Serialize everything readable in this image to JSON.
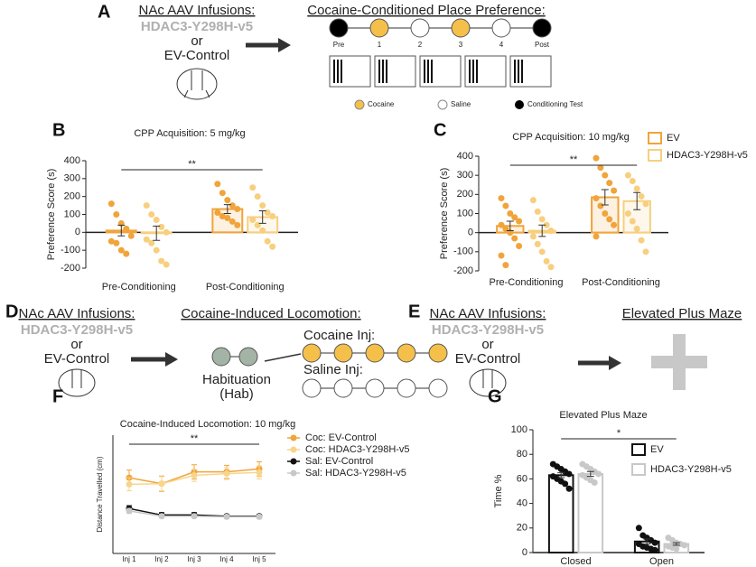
{
  "chart_data": [
    {
      "type": "bar",
      "title": "CPP Acquisition: 5 mg/kg",
      "ylabel": "Preference Score (s)",
      "categories": [
        "Pre-Conditioning",
        "Post-Conditioning"
      ],
      "ylim": [
        -200,
        400
      ],
      "yticks": [
        -200,
        -100,
        0,
        100,
        200,
        300,
        400
      ],
      "annotation": "**",
      "series": [
        {
          "color": "#f0a43a",
          "values": [
            10,
            130
          ],
          "errors": [
            30,
            25
          ],
          "points": [
            [
              160,
              100,
              50,
              20,
              -20,
              -50,
              -60,
              -100,
              -120
            ],
            [
              270,
              220,
              180,
              150,
              130,
              110,
              90,
              80,
              60,
              40
            ]
          ]
        },
        {
          "color": "#f7cf7e",
          "values": [
            -5,
            85
          ],
          "errors": [
            40,
            35
          ],
          "points": [
            [
              150,
              100,
              70,
              30,
              0,
              -40,
              -60,
              -100,
              -160,
              -180
            ],
            [
              250,
              200,
              150,
              110,
              90,
              70,
              40,
              10,
              -50,
              -80
            ]
          ]
        }
      ]
    },
    {
      "type": "bar",
      "title": "CPP Acquisition: 10 mg/kg",
      "ylabel": "Preference Score (s)",
      "categories": [
        "Pre-Conditioning",
        "Post-Conditioning"
      ],
      "ylim": [
        -200,
        400
      ],
      "yticks": [
        -200,
        -100,
        0,
        100,
        200,
        300,
        400
      ],
      "annotation": "**",
      "series": [
        {
          "name": "EV",
          "color": "#f0a43a",
          "values": [
            35,
            185
          ],
          "errors": [
            25,
            40
          ],
          "points": [
            [
              180,
              140,
              100,
              80,
              60,
              40,
              20,
              0,
              -30,
              -70,
              -120,
              -170
            ],
            [
              390,
              340,
              300,
              260,
              220,
              180,
              140,
              100,
              70,
              40,
              -20
            ]
          ]
        },
        {
          "name": "HDAC3-Y298H-v5",
          "color": "#f7cf7e",
          "values": [
            10,
            165
          ],
          "errors": [
            30,
            45
          ],
          "points": [
            [
              170,
              110,
              70,
              40,
              10,
              -20,
              -60,
              -100,
              -150,
              -180
            ],
            [
              300,
              270,
              230,
              190,
              150,
              100,
              60,
              20,
              -40,
              -100
            ]
          ]
        }
      ]
    },
    {
      "type": "line",
      "title": "Cocaine-Induced Locomotion: 10 mg/kg",
      "ylabel": "Distance Travelled (cm)",
      "categories": [
        "Inj 1",
        "Inj 2",
        "Inj 3",
        "Inj 4",
        "Inj 5"
      ],
      "ylim": [
        0,
        20000
      ],
      "annotation": "**",
      "series": [
        {
          "name": "Coc: EV-Control",
          "color": "#f0a43a",
          "values": [
            12800,
            11800,
            13800,
            13800,
            14300
          ],
          "errors": [
            1300,
            1300,
            1200,
            1100,
            1200
          ]
        },
        {
          "name": "Coc: HDAC3-Y298H-v5",
          "color": "#f7d58a",
          "values": [
            11700,
            11800,
            13200,
            13500,
            13700
          ],
          "errors": [
            1100,
            1200,
            1000,
            1000,
            1100
          ]
        },
        {
          "name": "Sal: EV-Control",
          "color": "#111111",
          "values": [
            7600,
            6500,
            6500,
            6300,
            6300
          ],
          "errors": [
            500,
            400,
            400,
            300,
            300
          ]
        },
        {
          "name": "Sal: HDAC3-Y298H-v5",
          "color": "#c8c8c8",
          "values": [
            7200,
            6300,
            6300,
            6200,
            6200
          ],
          "errors": [
            400,
            300,
            300,
            300,
            300
          ]
        }
      ]
    },
    {
      "type": "bar",
      "title": "Elevated Plus Maze",
      "ylabel": "Time %",
      "categories": [
        "Closed",
        "Open"
      ],
      "ylim": [
        0,
        100
      ],
      "yticks": [
        0,
        20,
        40,
        60,
        80,
        100
      ],
      "annotation": "*",
      "series": [
        {
          "name": "EV",
          "color": "#111111",
          "values": [
            63,
            9
          ],
          "errors": [
            2,
            2
          ],
          "points": [
            [
              72,
              70,
              68,
              66,
              64,
              62,
              60,
              58,
              56,
              52
            ],
            [
              20,
              14,
              12,
              10,
              8,
              7,
              5,
              4,
              3,
              2
            ]
          ]
        },
        {
          "name": "HDAC3-Y298H-v5",
          "color": "#c8c8c8",
          "values": [
            64,
            7
          ],
          "errors": [
            2,
            1
          ],
          "points": [
            [
              72,
              70,
              68,
              66,
              64,
              63,
              61,
              59,
              57
            ],
            [
              12,
              10,
              8,
              7,
              6,
              5,
              4,
              3
            ]
          ]
        }
      ]
    }
  ],
  "panel_labels": [
    "A",
    "B",
    "C",
    "D",
    "E",
    "F",
    "G"
  ],
  "panel_a": {
    "infusion_title": "NAc AAV Infusions:",
    "virus": "HDAC3-Y298H-v5",
    "or": "or",
    "control": "EV-Control",
    "cpp_title": "Cocaine-Conditioned Place Preference:",
    "sessions": [
      "Pre",
      "1",
      "2",
      "3",
      "4",
      "Post"
    ],
    "legend": [
      "Cocaine",
      "Saline",
      "Conditioning Test"
    ]
  },
  "panel_d": {
    "infusion_title": "NAc AAV Infusions:",
    "virus": "HDAC3-Y298H-v5",
    "or": "or",
    "control": "EV-Control",
    "title": "Cocaine-Induced Locomotion:",
    "habituation": [
      "Habituation",
      "(Hab)"
    ],
    "cocaine": "Cocaine Inj:",
    "saline": "Saline Inj:"
  },
  "panel_e": {
    "infusion_title": "NAc AAV Infusions:",
    "virus": "HDAC3-Y298H-v5",
    "or": "or",
    "control": "EV-Control",
    "title": "Elevated Plus Maze"
  }
}
